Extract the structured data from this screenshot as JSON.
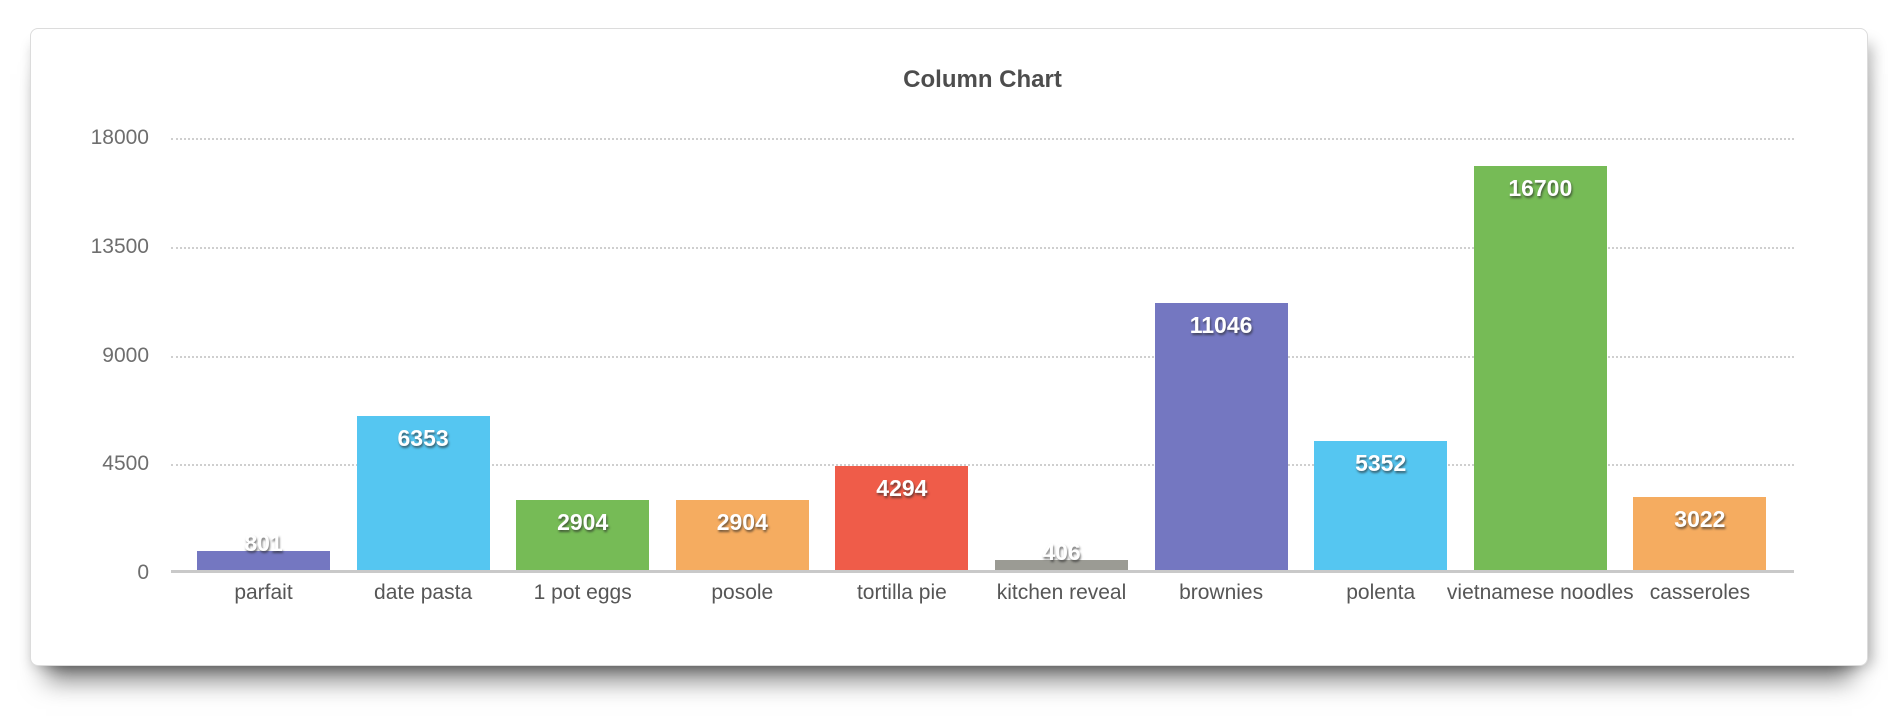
{
  "chart_data": {
    "type": "bar",
    "title": "Column Chart",
    "categories": [
      "parfait",
      "date pasta",
      "1 pot eggs",
      "posole",
      "tortilla pie",
      "kitchen reveal",
      "brownies",
      "polenta",
      "vietnamese noodles",
      "casseroles"
    ],
    "values": [
      801,
      6353,
      2904,
      2904,
      4294,
      406,
      11046,
      5352,
      16700,
      3022
    ],
    "bar_colors": [
      "#7477c1",
      "#55c6f1",
      "#76bb56",
      "#f5ac60",
      "#ef5c49",
      "#9b9b94",
      "#7477c1",
      "#55c6f1",
      "#76bb56",
      "#f5ac60"
    ],
    "y_ticks": [
      0,
      4500,
      9000,
      13500,
      18000
    ],
    "ylim": [
      0,
      18000
    ],
    "xlabel": "",
    "ylabel": "",
    "grid": "horizontal-dotted",
    "legend_position": "none",
    "value_label_color": "#ffffff",
    "title_color": "#4d4d4d",
    "tick_label_color": "#6e6e6e",
    "category_label_color": "#565656",
    "axis_line_color": "#c9c9c9"
  }
}
